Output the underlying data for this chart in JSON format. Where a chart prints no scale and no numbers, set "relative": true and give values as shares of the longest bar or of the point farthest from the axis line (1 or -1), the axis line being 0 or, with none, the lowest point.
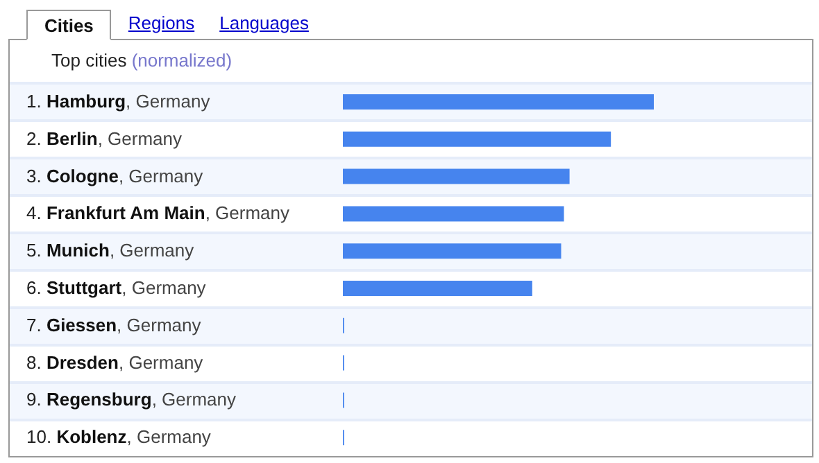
{
  "chart_data": {
    "type": "bar",
    "orientation": "horizontal",
    "relative": true,
    "subtitle": "Top cities (normalized)",
    "annotations": [
      "Cities",
      "Regions",
      "Languages"
    ],
    "categories": [
      "1. Hamburg, Germany",
      "2. Berlin, Germany",
      "3. Cologne, Germany",
      "4. Frankfurt Am Main, Germany",
      "5. Munich, Germany",
      "6. Stuttgart, Germany",
      "7. Giessen, Germany",
      "8. Dresden, Germany",
      "9. Regensburg, Germany",
      "10. Koblenz, Germany"
    ],
    "values": [
      1,
      0.862,
      0.729,
      0.711,
      0.702,
      0.609,
      0.004,
      0.004,
      0.004,
      0.004
    ],
    "color": "#4684ee"
  }
}
